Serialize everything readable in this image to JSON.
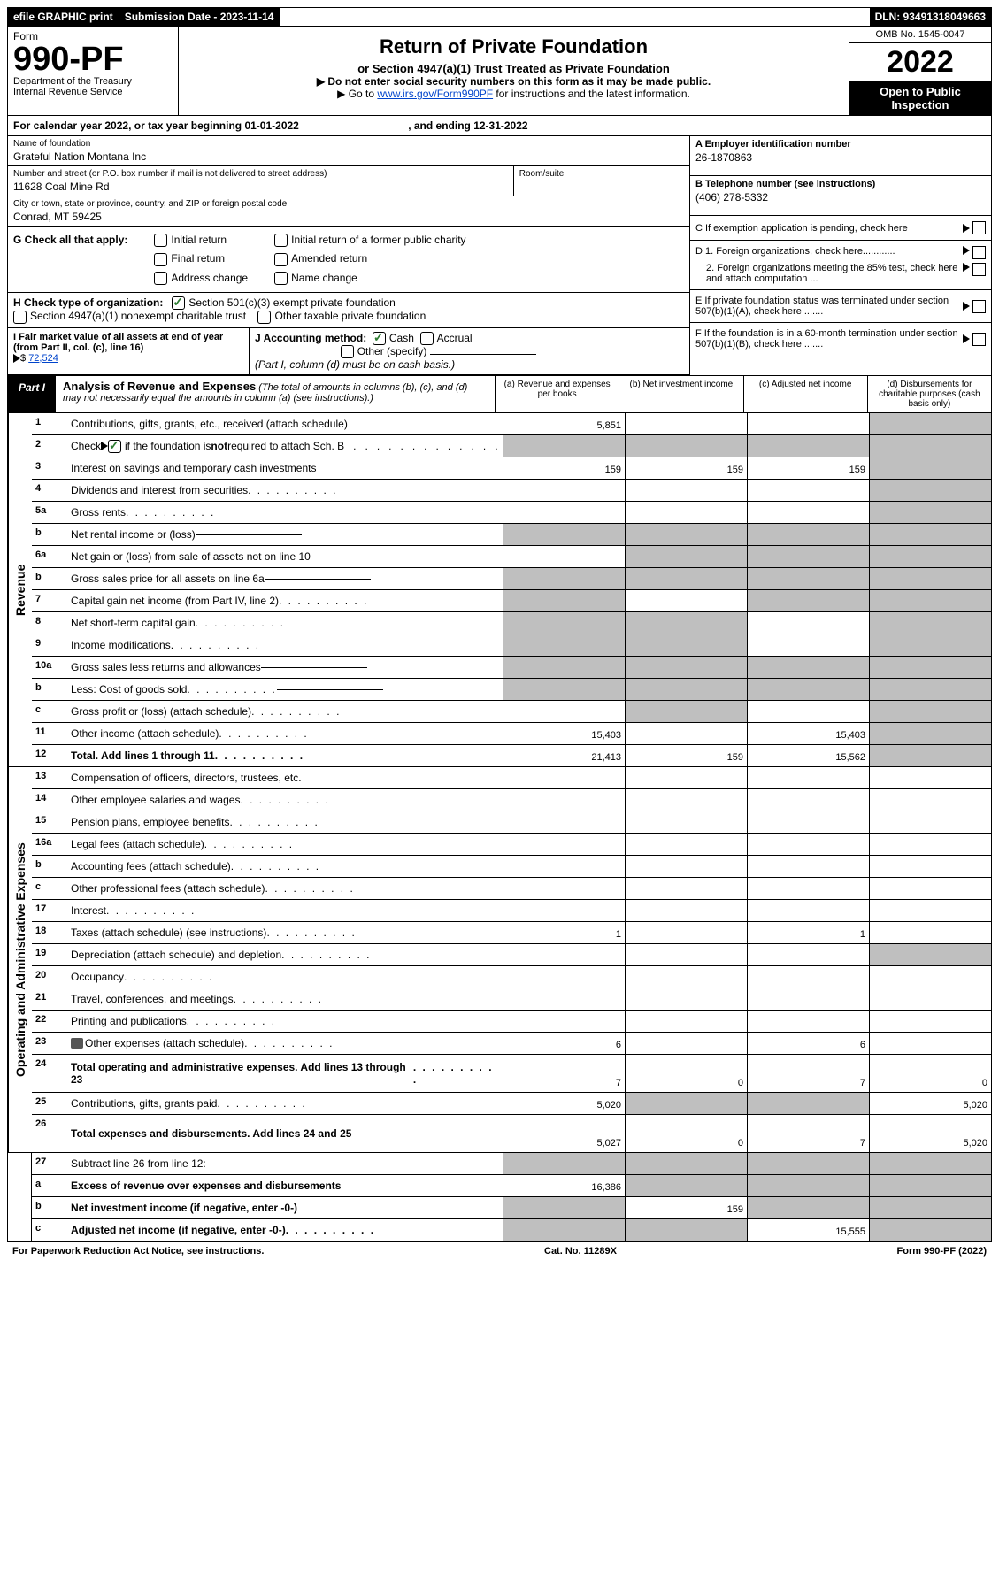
{
  "topbar": {
    "efile": "efile GRAPHIC print",
    "submission_label": "Submission Date - 2023-11-14",
    "dln": "DLN: 93491318049663"
  },
  "header": {
    "form_label": "Form",
    "form_number": "990-PF",
    "dept": "Department of the Treasury",
    "irs": "Internal Revenue Service",
    "title": "Return of Private Foundation",
    "subtitle": "or Section 4947(a)(1) Trust Treated as Private Foundation",
    "instr1": "▶ Do not enter social security numbers on this form as it may be made public.",
    "instr2_pre": "▶ Go to ",
    "instr2_link": "www.irs.gov/Form990PF",
    "instr2_post": " for instructions and the latest information.",
    "omb": "OMB No. 1545-0047",
    "year": "2022",
    "open_public": "Open to Public Inspection"
  },
  "calyear": {
    "text_pre": "For calendar year 2022, or tax year beginning ",
    "begin": "01-01-2022",
    "text_mid": " , and ending ",
    "end": "12-31-2022"
  },
  "foundation": {
    "name_label": "Name of foundation",
    "name": "Grateful Nation Montana Inc",
    "addr_label": "Number and street (or P.O. box number if mail is not delivered to street address)",
    "addr": "11628 Coal Mine Rd",
    "room_label": "Room/suite",
    "city_label": "City or town, state or province, country, and ZIP or foreign postal code",
    "city": "Conrad, MT  59425"
  },
  "right_info": {
    "a_label": "A Employer identification number",
    "a_val": "26-1870863",
    "b_label": "B Telephone number (see instructions)",
    "b_val": "(406) 278-5332",
    "c_label": "C If exemption application is pending, check here",
    "d1_label": "D 1. Foreign organizations, check here............",
    "d2_label": "2. Foreign organizations meeting the 85% test, check here and attach computation ...",
    "e_label": "E  If private foundation status was terminated under section 507(b)(1)(A), check here .......",
    "f_label": "F  If the foundation is in a 60-month termination under section 507(b)(1)(B), check here ......."
  },
  "g_section": {
    "label": "G Check all that apply:",
    "initial": "Initial return",
    "initial_former": "Initial return of a former public charity",
    "final": "Final return",
    "amended": "Amended return",
    "addr_change": "Address change",
    "name_change": "Name change"
  },
  "h_section": {
    "label": "H Check type of organization:",
    "opt1": "Section 501(c)(3) exempt private foundation",
    "opt2": "Section 4947(a)(1) nonexempt charitable trust",
    "opt3": "Other taxable private foundation"
  },
  "i_section": {
    "label": "I Fair market value of all assets at end of year (from Part II, col. (c), line 16)",
    "arrow": "▶$ ",
    "value": "72,524"
  },
  "j_section": {
    "label": "J Accounting method:",
    "cash": "Cash",
    "accrual": "Accrual",
    "other": "Other (specify)",
    "note": "(Part I, column (d) must be on cash basis.)"
  },
  "part1": {
    "label": "Part I",
    "title": "Analysis of Revenue and Expenses",
    "note": "(The total of amounts in columns (b), (c), and (d) may not necessarily equal the amounts in column (a) (see instructions).)",
    "col_a": "(a)   Revenue and expenses per books",
    "col_b": "(b)   Net investment income",
    "col_c": "(c)   Adjusted net income",
    "col_d": "(d)   Disbursements for charitable purposes (cash basis only)"
  },
  "sidebars": {
    "revenue": "Revenue",
    "expenses": "Operating and Administrative Expenses"
  },
  "rows": [
    {
      "num": "1",
      "label": "Contributions, gifts, grants, etc., received (attach schedule)",
      "a": "5,851",
      "b": "",
      "c": "",
      "d": "",
      "shade": [
        "d"
      ],
      "section": "rev"
    },
    {
      "num": "2",
      "label": "Check ▶ ☑ if the foundation is not required to attach Sch. B",
      "a": "",
      "b": "",
      "c": "",
      "d": "",
      "shade": [
        "a",
        "b",
        "c",
        "d"
      ],
      "section": "rev",
      "hascheck": true
    },
    {
      "num": "3",
      "label": "Interest on savings and temporary cash investments",
      "a": "159",
      "b": "159",
      "c": "159",
      "d": "",
      "shade": [
        "d"
      ],
      "section": "rev"
    },
    {
      "num": "4",
      "label": "Dividends and interest from securities",
      "a": "",
      "b": "",
      "c": "",
      "d": "",
      "shade": [
        "d"
      ],
      "section": "rev",
      "dots": true
    },
    {
      "num": "5a",
      "label": "Gross rents",
      "a": "",
      "b": "",
      "c": "",
      "d": "",
      "shade": [
        "d"
      ],
      "section": "rev",
      "dots": true
    },
    {
      "num": "b",
      "label": "Net rental income or (loss)",
      "a": "",
      "b": "",
      "c": "",
      "d": "",
      "shade": [
        "a",
        "b",
        "c",
        "d"
      ],
      "section": "rev",
      "underline": true
    },
    {
      "num": "6a",
      "label": "Net gain or (loss) from sale of assets not on line 10",
      "a": "",
      "b": "",
      "c": "",
      "d": "",
      "shade": [
        "b",
        "c",
        "d"
      ],
      "section": "rev"
    },
    {
      "num": "b",
      "label": "Gross sales price for all assets on line 6a",
      "a": "",
      "b": "",
      "c": "",
      "d": "",
      "shade": [
        "a",
        "b",
        "c",
        "d"
      ],
      "section": "rev",
      "underline": true
    },
    {
      "num": "7",
      "label": "Capital gain net income (from Part IV, line 2)",
      "a": "",
      "b": "",
      "c": "",
      "d": "",
      "shade": [
        "a",
        "c",
        "d"
      ],
      "section": "rev",
      "dots": true
    },
    {
      "num": "8",
      "label": "Net short-term capital gain",
      "a": "",
      "b": "",
      "c": "",
      "d": "",
      "shade": [
        "a",
        "b",
        "d"
      ],
      "section": "rev",
      "dots": true
    },
    {
      "num": "9",
      "label": "Income modifications",
      "a": "",
      "b": "",
      "c": "",
      "d": "",
      "shade": [
        "a",
        "b",
        "d"
      ],
      "section": "rev",
      "dots": true
    },
    {
      "num": "10a",
      "label": "Gross sales less returns and allowances",
      "a": "",
      "b": "",
      "c": "",
      "d": "",
      "shade": [
        "a",
        "b",
        "c",
        "d"
      ],
      "section": "rev",
      "underline": true
    },
    {
      "num": "b",
      "label": "Less: Cost of goods sold",
      "a": "",
      "b": "",
      "c": "",
      "d": "",
      "shade": [
        "a",
        "b",
        "c",
        "d"
      ],
      "section": "rev",
      "dots": true,
      "underline": true
    },
    {
      "num": "c",
      "label": "Gross profit or (loss) (attach schedule)",
      "a": "",
      "b": "",
      "c": "",
      "d": "",
      "shade": [
        "b",
        "d"
      ],
      "section": "rev",
      "dots": true
    },
    {
      "num": "11",
      "label": "Other income (attach schedule)",
      "a": "15,403",
      "b": "",
      "c": "15,403",
      "d": "",
      "shade": [
        "d"
      ],
      "section": "rev",
      "dots": true
    },
    {
      "num": "12",
      "label": "Total. Add lines 1 through 11",
      "a": "21,413",
      "b": "159",
      "c": "15,562",
      "d": "",
      "shade": [
        "d"
      ],
      "section": "rev",
      "bold": true,
      "dots": true
    },
    {
      "num": "13",
      "label": "Compensation of officers, directors, trustees, etc.",
      "a": "",
      "b": "",
      "c": "",
      "d": "",
      "section": "exp"
    },
    {
      "num": "14",
      "label": "Other employee salaries and wages",
      "a": "",
      "b": "",
      "c": "",
      "d": "",
      "section": "exp",
      "dots": true
    },
    {
      "num": "15",
      "label": "Pension plans, employee benefits",
      "a": "",
      "b": "",
      "c": "",
      "d": "",
      "section": "exp",
      "dots": true
    },
    {
      "num": "16a",
      "label": "Legal fees (attach schedule)",
      "a": "",
      "b": "",
      "c": "",
      "d": "",
      "section": "exp",
      "dots": true
    },
    {
      "num": "b",
      "label": "Accounting fees (attach schedule)",
      "a": "",
      "b": "",
      "c": "",
      "d": "",
      "section": "exp",
      "dots": true
    },
    {
      "num": "c",
      "label": "Other professional fees (attach schedule)",
      "a": "",
      "b": "",
      "c": "",
      "d": "",
      "section": "exp",
      "dots": true
    },
    {
      "num": "17",
      "label": "Interest",
      "a": "",
      "b": "",
      "c": "",
      "d": "",
      "section": "exp",
      "dots": true
    },
    {
      "num": "18",
      "label": "Taxes (attach schedule) (see instructions)",
      "a": "1",
      "b": "",
      "c": "1",
      "d": "",
      "section": "exp",
      "dots": true
    },
    {
      "num": "19",
      "label": "Depreciation (attach schedule) and depletion",
      "a": "",
      "b": "",
      "c": "",
      "d": "",
      "shade": [
        "d"
      ],
      "section": "exp",
      "dots": true
    },
    {
      "num": "20",
      "label": "Occupancy",
      "a": "",
      "b": "",
      "c": "",
      "d": "",
      "section": "exp",
      "dots": true
    },
    {
      "num": "21",
      "label": "Travel, conferences, and meetings",
      "a": "",
      "b": "",
      "c": "",
      "d": "",
      "section": "exp",
      "dots": true
    },
    {
      "num": "22",
      "label": "Printing and publications",
      "a": "",
      "b": "",
      "c": "",
      "d": "",
      "section": "exp",
      "dots": true
    },
    {
      "num": "23",
      "label": "Other expenses (attach schedule)",
      "a": "6",
      "b": "",
      "c": "6",
      "d": "",
      "section": "exp",
      "dots": true,
      "icon": true
    },
    {
      "num": "24",
      "label": "Total operating and administrative expenses. Add lines 13 through 23",
      "a": "7",
      "b": "0",
      "c": "7",
      "d": "0",
      "section": "exp",
      "bold": true,
      "dots": true,
      "tall": true
    },
    {
      "num": "25",
      "label": "Contributions, gifts, grants paid",
      "a": "5,020",
      "b": "",
      "c": "",
      "d": "5,020",
      "shade": [
        "b",
        "c"
      ],
      "section": "exp",
      "dots": true
    },
    {
      "num": "26",
      "label": "Total expenses and disbursements. Add lines 24 and 25",
      "a": "5,027",
      "b": "0",
      "c": "7",
      "d": "5,020",
      "section": "exp",
      "bold": true,
      "tall": true
    },
    {
      "num": "27",
      "label": "Subtract line 26 from line 12:",
      "a": "",
      "b": "",
      "c": "",
      "d": "",
      "shade": [
        "a",
        "b",
        "c",
        "d"
      ],
      "section": "bottom"
    },
    {
      "num": "a",
      "label": "Excess of revenue over expenses and disbursements",
      "a": "16,386",
      "b": "",
      "c": "",
      "d": "",
      "shade": [
        "b",
        "c",
        "d"
      ],
      "section": "bottom",
      "bold": true
    },
    {
      "num": "b",
      "label": "Net investment income (if negative, enter -0-)",
      "a": "",
      "b": "159",
      "c": "",
      "d": "",
      "shade": [
        "a",
        "c",
        "d"
      ],
      "section": "bottom",
      "bold": true
    },
    {
      "num": "c",
      "label": "Adjusted net income (if negative, enter -0-)",
      "a": "",
      "b": "",
      "c": "15,555",
      "d": "",
      "shade": [
        "a",
        "b",
        "d"
      ],
      "section": "bottom",
      "bold": true,
      "dots": true
    }
  ],
  "footer": {
    "left": "For Paperwork Reduction Act Notice, see instructions.",
    "center": "Cat. No. 11289X",
    "right": "Form 990-PF (2022)"
  },
  "colors": {
    "link": "#0044cc",
    "shaded": "#bfbfbf",
    "check_green": "#2e7d32"
  }
}
